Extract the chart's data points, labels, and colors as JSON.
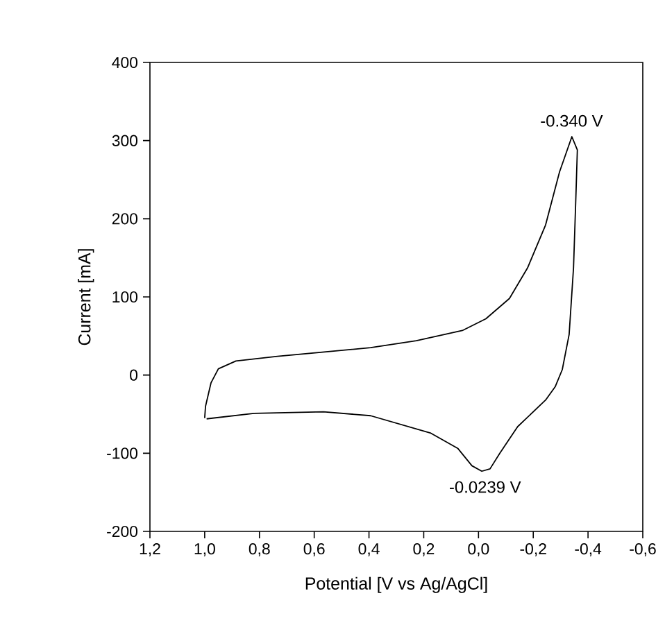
{
  "chart_data": {
    "type": "line",
    "xlabel": "Potential [V vs Ag/AgCl]",
    "ylabel": "Current [mA]",
    "xlim": [
      1.2,
      -0.6
    ],
    "ylim": [
      -200,
      400
    ],
    "xticks": [
      {
        "value": 1.2,
        "label": "1,2"
      },
      {
        "value": 1.0,
        "label": "1,0"
      },
      {
        "value": 0.8,
        "label": "0,8"
      },
      {
        "value": 0.6,
        "label": "0,6"
      },
      {
        "value": 0.4,
        "label": "0,4"
      },
      {
        "value": 0.2,
        "label": "0,2"
      },
      {
        "value": 0.0,
        "label": "0,0"
      },
      {
        "value": -0.2,
        "label": "-0,2"
      },
      {
        "value": -0.4,
        "label": "-0,4"
      },
      {
        "value": -0.6,
        "label": "-0,6"
      }
    ],
    "yticks": [
      -200,
      -100,
      0,
      100,
      200,
      300,
      400
    ],
    "series": [
      {
        "color": "#000000",
        "x": [
          1.0,
          0.997,
          0.977,
          0.95,
          0.886,
          0.734,
          0.394,
          0.227,
          0.059,
          -0.027,
          -0.113,
          -0.179,
          -0.245,
          -0.296,
          -0.341,
          -0.361,
          -0.355,
          -0.347,
          -0.331,
          -0.306,
          -0.28,
          -0.245,
          -0.143,
          -0.078,
          -0.042,
          -0.012,
          0.024,
          0.075,
          0.176,
          0.394,
          0.566,
          0.82,
          0.993
        ],
        "values": [
          -55,
          -40,
          -10,
          8,
          18,
          24,
          35,
          44,
          57,
          72,
          98,
          137,
          192,
          260,
          305,
          288,
          221,
          137,
          52,
          7,
          -15,
          -32,
          -66,
          -100,
          -120,
          -123,
          -116,
          -94,
          -74,
          -52,
          -47,
          -49,
          -56
        ]
      }
    ],
    "annotations": [
      {
        "text": "-0.340 V",
        "x": -0.34,
        "y": 305
      },
      {
        "text": "-0.0239 V",
        "x": -0.0239,
        "y": -123
      }
    ]
  }
}
